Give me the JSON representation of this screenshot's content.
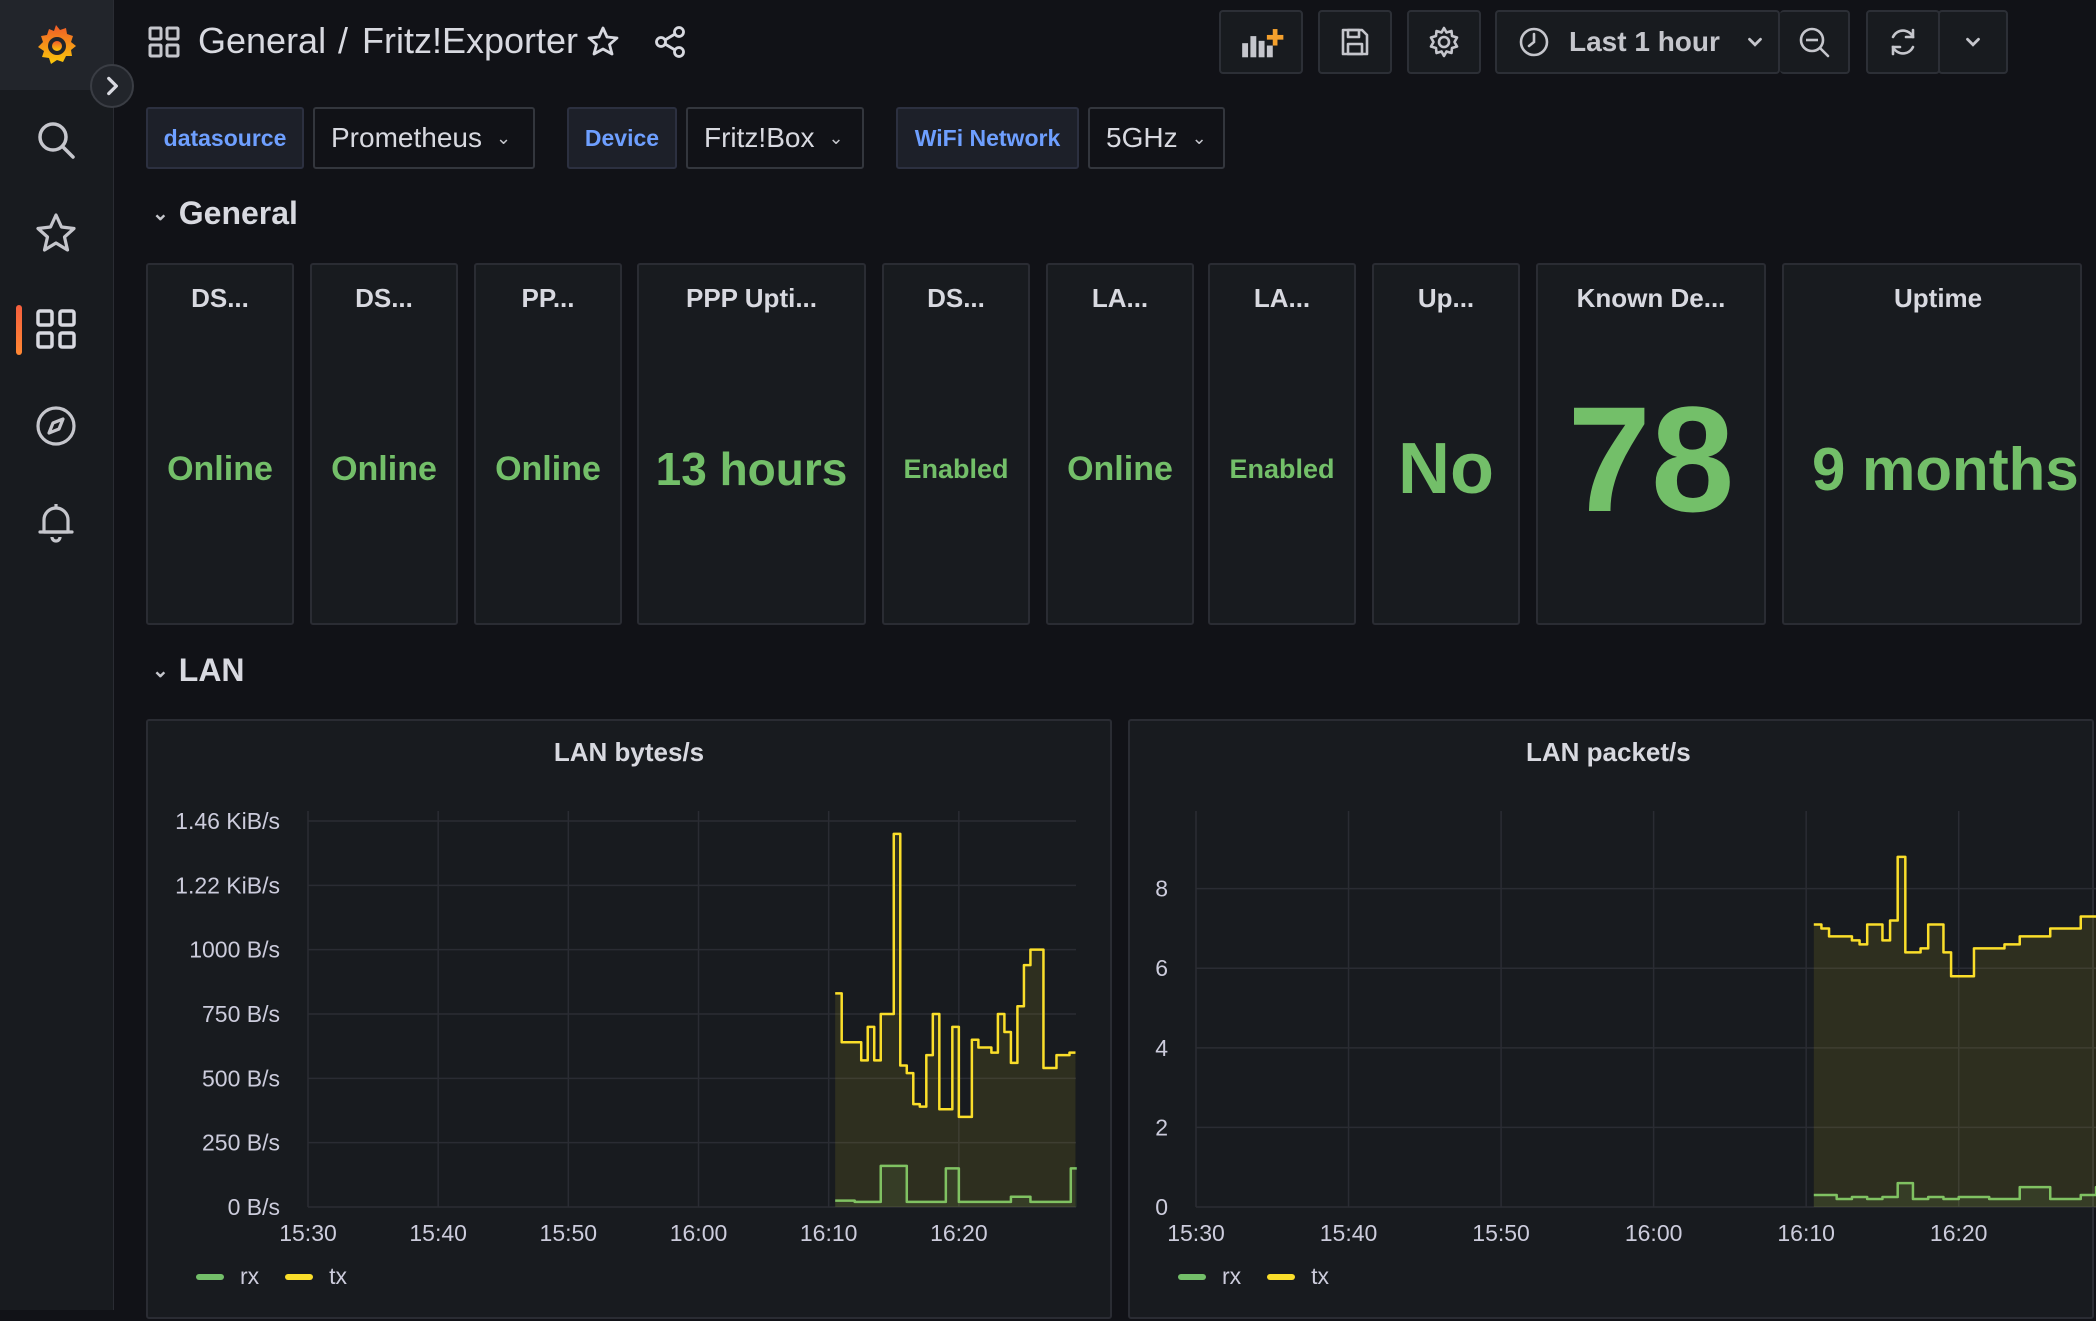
{
  "header": {
    "folder": "General",
    "separator": "/",
    "dashboard_title": "Fritz!Exporter",
    "time_range": "Last 1 hour",
    "icons": [
      "grid-icon",
      "star-icon",
      "share-icon",
      "add-panel-icon",
      "save-icon",
      "gear-icon",
      "clock-icon",
      "zoom-out-icon",
      "refresh-icon",
      "chevron-down-icon"
    ]
  },
  "sidebar": {
    "items": [
      "grafana-logo-icon",
      "search-icon",
      "star-icon",
      "dashboards-icon",
      "explore-icon",
      "alerting-icon"
    ],
    "active": "dashboards-icon",
    "accent": "#f55f3e"
  },
  "variables": [
    {
      "label": "datasource",
      "value": "Prometheus"
    },
    {
      "label": "Device",
      "value": "Fritz!Box"
    },
    {
      "label": "WiFi Network",
      "value": "5GHz"
    }
  ],
  "rows": {
    "general": "General",
    "lan": "LAN"
  },
  "stats": [
    {
      "title": "DS...",
      "value": "Online"
    },
    {
      "title": "DS...",
      "value": "Online"
    },
    {
      "title": "PP...",
      "value": "Online"
    },
    {
      "title": "PPP Upti...",
      "value": "13 hours"
    },
    {
      "title": "DS...",
      "value": "Enabled"
    },
    {
      "title": "LA...",
      "value": "Online"
    },
    {
      "title": "LA...",
      "value": "Enabled"
    },
    {
      "title": "Up...",
      "value": "No"
    },
    {
      "title": "Known De...",
      "value": "78"
    },
    {
      "title": "Uptime",
      "value": "9 months"
    }
  ],
  "colors": {
    "value_green": "#73bf69",
    "series_rx": "#73bf69",
    "series_tx": "#fade2a",
    "background": "#111217",
    "panel": "#181b1f"
  },
  "chart_data": [
    {
      "type": "line",
      "title": "LAN bytes/s",
      "yticks": [
        "0 B/s",
        "250 B/s",
        "500 B/s",
        "750 B/s",
        "1000 B/s",
        "1.22 KiB/s",
        "1.46 KiB/s"
      ],
      "ylim": [
        0,
        1500
      ],
      "xticks": [
        "15:30",
        "15:40",
        "15:50",
        "16:00",
        "16:10",
        "16:20"
      ],
      "x_minutes": [
        0,
        10,
        20,
        30,
        40,
        50
      ],
      "xlim_minutes": [
        0,
        59
      ],
      "grid": true,
      "legend_position": "bottom-left",
      "series": [
        {
          "name": "rx",
          "x": [
            40.5,
            42,
            42.5,
            43.5,
            44,
            46,
            46.5,
            48.5,
            49,
            50,
            51,
            54,
            55.5,
            58,
            58.6
          ],
          "y": [
            25,
            20,
            20,
            20,
            160,
            20,
            20,
            20,
            150,
            20,
            20,
            40,
            20,
            20,
            150
          ]
        },
        {
          "name": "tx",
          "x": [
            40.5,
            41,
            42,
            42.5,
            43,
            43.5,
            44,
            44.5,
            45,
            45.5,
            46,
            46.5,
            47,
            47.5,
            48,
            48.5,
            49,
            49.5,
            50,
            50.5,
            51,
            51.5,
            52,
            52.5,
            53,
            53.5,
            54,
            54.5,
            55,
            55.5,
            56,
            56.5,
            57,
            57.5,
            58,
            58.5
          ],
          "y": [
            830,
            640,
            640,
            570,
            700,
            570,
            750,
            750,
            1450,
            550,
            520,
            400,
            390,
            590,
            750,
            380,
            380,
            700,
            350,
            350,
            650,
            620,
            620,
            600,
            750,
            680,
            560,
            780,
            940,
            1000,
            1000,
            540,
            540,
            590,
            590,
            600
          ]
        }
      ]
    },
    {
      "type": "line",
      "title": "LAN packet/s",
      "yticks": [
        "0",
        "2",
        "4",
        "6",
        "8"
      ],
      "ylim": [
        0,
        9.7
      ],
      "xticks": [
        "15:30",
        "15:40",
        "15:50",
        "16:00",
        "16:10",
        "16:20"
      ],
      "x_minutes": [
        0,
        10,
        20,
        30,
        40,
        50
      ],
      "xlim_minutes": [
        0,
        59
      ],
      "grid": true,
      "legend_position": "bottom-left",
      "series": [
        {
          "name": "rx",
          "x": [
            40.5,
            42,
            43,
            44,
            45,
            46,
            47,
            48,
            49,
            50,
            52,
            54,
            56,
            58,
            59
          ],
          "y": [
            0.3,
            0.2,
            0.25,
            0.2,
            0.25,
            0.6,
            0.2,
            0.25,
            0.2,
            0.25,
            0.2,
            0.5,
            0.2,
            0.3,
            0.5
          ]
        },
        {
          "name": "tx",
          "x": [
            40.5,
            41,
            41.5,
            42,
            43,
            43.5,
            44,
            44.5,
            45,
            45.5,
            46,
            46.5,
            47,
            47.5,
            48,
            48.5,
            49,
            49.5,
            50,
            51,
            52,
            53,
            54,
            55,
            56,
            57,
            58,
            59
          ],
          "y": [
            7.1,
            7.0,
            6.8,
            6.8,
            6.7,
            6.6,
            7.1,
            7.1,
            6.7,
            7.2,
            8.8,
            6.4,
            6.4,
            6.5,
            7.1,
            7.1,
            6.4,
            5.8,
            5.8,
            6.5,
            6.5,
            6.6,
            6.8,
            6.8,
            7.0,
            7.0,
            7.3,
            7.3
          ]
        }
      ]
    }
  ]
}
